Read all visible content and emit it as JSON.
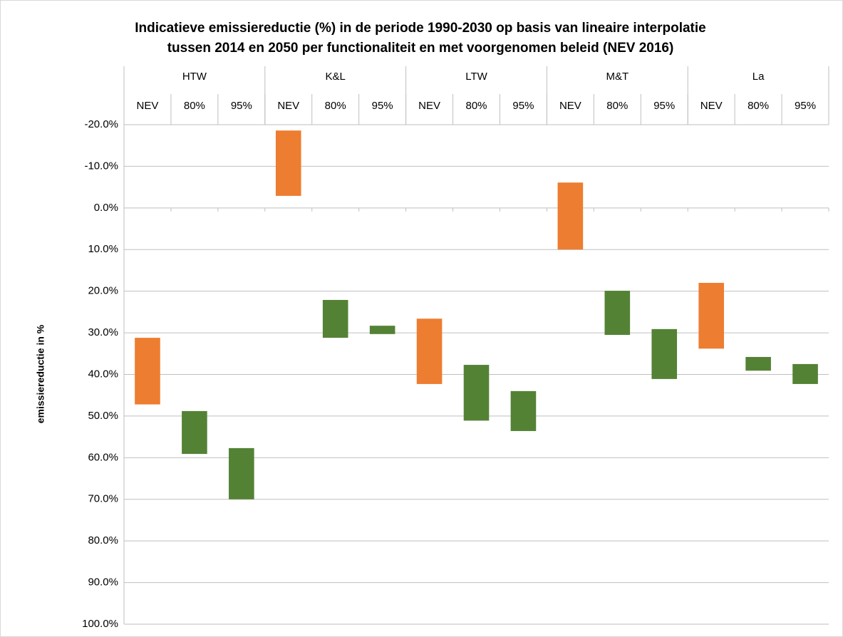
{
  "chart_data": {
    "type": "floating-bar",
    "title": [
      "Indicatieve emissiereductie (%) in de periode 1990-2030 op basis van lineaire interpolatie",
      "tussen 2014 en 2050 per functionaliteit en met voorgenomen beleid (NEV 2016)"
    ],
    "y_label": "emissiereductie in %",
    "groups": [
      {
        "name": "HTW",
        "size": 3
      },
      {
        "name": "K&L",
        "size": 3
      },
      {
        "name": "LTW",
        "size": 3
      },
      {
        "name": "M&T",
        "size": 3
      },
      {
        "name": "La",
        "size": 3
      }
    ],
    "categories": [
      "NEV",
      "80%",
      "95%",
      "NEV",
      "80%",
      "95%",
      "NEV",
      "80%",
      "95%",
      "NEV",
      "80%",
      "95%",
      "NEV",
      "80%",
      "95%"
    ],
    "ranges": [
      [
        31.2,
        47.2
      ],
      [
        48.8,
        59.1
      ],
      [
        57.7,
        70
      ],
      [
        -18.6,
        -2.9
      ],
      [
        22.1,
        31.2
      ],
      [
        28.3,
        30.3
      ],
      [
        26.6,
        42.3
      ],
      [
        37.7,
        51.1
      ],
      [
        44,
        53.6
      ],
      [
        -6.1,
        10
      ],
      [
        19.9,
        30.5
      ],
      [
        29.1,
        41.1
      ],
      [
        18,
        33.8
      ],
      [
        35.8,
        39.1
      ],
      [
        37.5,
        42.3
      ]
    ],
    "colors": [
      "#ed7d31",
      "#548235",
      "#548235",
      "#ed7d31",
      "#548235",
      "#548235",
      "#ed7d31",
      "#548235",
      "#548235",
      "#ed7d31",
      "#548235",
      "#548235",
      "#ed7d31",
      "#548235",
      "#548235"
    ],
    "ylim": [
      -20,
      100
    ],
    "y_inverted": true,
    "yticks": [
      {
        "value": -20,
        "label": "-20.0%"
      },
      {
        "value": -10,
        "label": "-10.0%"
      },
      {
        "value": 0,
        "label": "0.0%"
      },
      {
        "value": 10,
        "label": "10.0%"
      },
      {
        "value": 20,
        "label": "20.0%"
      },
      {
        "value": 30,
        "label": "30.0%"
      },
      {
        "value": 40,
        "label": "40.0%"
      },
      {
        "value": 50,
        "label": "50.0%"
      },
      {
        "value": 60,
        "label": "60.0%"
      },
      {
        "value": 70,
        "label": "70.0%"
      },
      {
        "value": 80,
        "label": "80.0%"
      },
      {
        "value": 90,
        "label": "90.0%"
      },
      {
        "value": 100,
        "label": "100.0%"
      }
    ],
    "grid": true
  }
}
